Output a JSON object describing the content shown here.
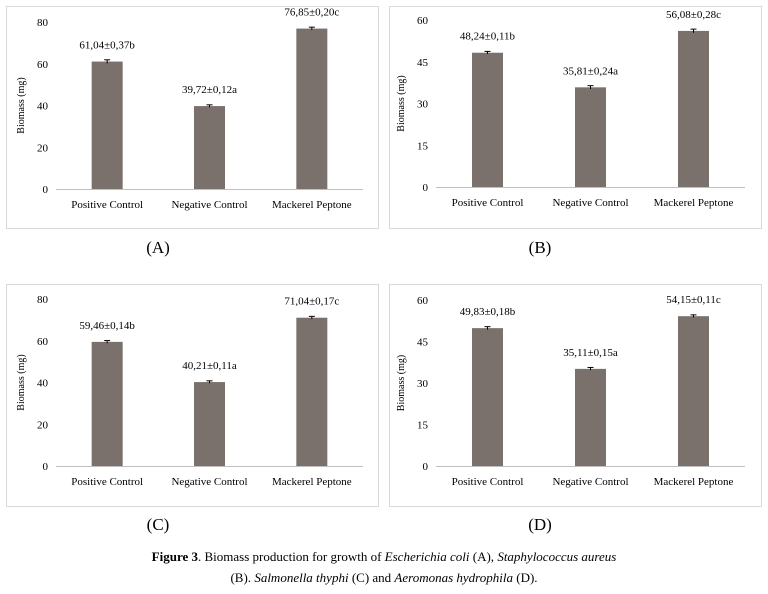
{
  "chart_data": [
    {
      "type": "bar",
      "panel_label": "(A)",
      "categories": [
        "Positive Control",
        "Negative Control",
        "Mackerel Peptone"
      ],
      "values": [
        61.04,
        39.72,
        76.85
      ],
      "errors": [
        0.37,
        0.12,
        0.2
      ],
      "data_labels": [
        "61,04±0,37b",
        "39,72±0,12a",
        "76,85±0,20c"
      ],
      "ylabel": "Biomass (mg)",
      "ylim": [
        0,
        80
      ],
      "yticks": [
        "0",
        "20",
        "40",
        "60",
        "80"
      ],
      "bar_color": "#7a716c"
    },
    {
      "type": "bar",
      "panel_label": "(B)",
      "categories": [
        "Positive Control",
        "Negative Control",
        "Mackerel Peptone"
      ],
      "values": [
        48.24,
        35.81,
        56.08
      ],
      "errors": [
        0.11,
        0.24,
        0.28
      ],
      "data_labels": [
        "48,24±0,11b",
        "35,81±0,24a",
        "56,08±0,28c"
      ],
      "ylabel": "Biomass (mg)",
      "ylim": [
        0,
        60
      ],
      "yticks": [
        "0",
        "15",
        "30",
        "45",
        "60"
      ],
      "bar_color": "#7a716c"
    },
    {
      "type": "bar",
      "panel_label": "(C)",
      "categories": [
        "Positive Control",
        "Negative Control",
        "Mackerel Peptone"
      ],
      "values": [
        59.46,
        40.21,
        71.04
      ],
      "errors": [
        0.14,
        0.11,
        0.17
      ],
      "data_labels": [
        "59,46±0,14b",
        "40,21±0,11a",
        "71,04±0,17c"
      ],
      "ylabel": "Biomass (mg)",
      "ylim": [
        0,
        80
      ],
      "yticks": [
        "0",
        "20",
        "40",
        "60",
        "80"
      ],
      "bar_color": "#7a716c"
    },
    {
      "type": "bar",
      "panel_label": "(D)",
      "categories": [
        "Positive Control",
        "Negative Control",
        "Mackerel Peptone"
      ],
      "values": [
        49.83,
        35.11,
        54.15
      ],
      "errors": [
        0.18,
        0.15,
        0.11
      ],
      "data_labels": [
        "49,83±0,18b",
        "35,11±0,15a",
        "54,15±0,11c"
      ],
      "ylabel": "Biomass (mg)",
      "ylim": [
        0,
        60
      ],
      "yticks": [
        "0",
        "15",
        "30",
        "45",
        "60"
      ],
      "bar_color": "#7a716c"
    }
  ],
  "caption": {
    "label": "Figure 3",
    "text1": ". Biomass production for growth of ",
    "species1": "Escherichia coli",
    "text2": " (A), ",
    "species2": "Staphylococcus aureus",
    "text3": "(B). ",
    "species3": "Salmonella thyphi",
    "text4": " (C) and ",
    "species4": "Aeromonas hydrophila",
    "text5": " (D)."
  }
}
